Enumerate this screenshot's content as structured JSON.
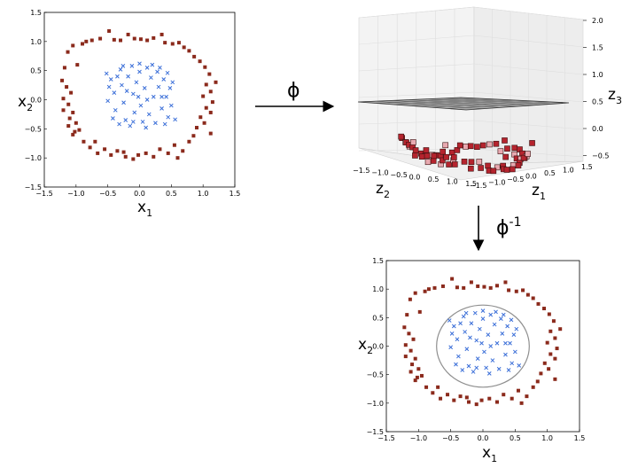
{
  "arrows": {
    "phi_label": "ϕ",
    "phi_inv_label": "ϕ",
    "phi_inv_sup": "-1"
  },
  "panels": {
    "top_left": {
      "xlabel_var": "x",
      "xlabel_sub": "1",
      "ylabel_var": "x",
      "ylabel_sub": "2",
      "xticks": [
        "−1.5",
        "−1.0",
        "−0.5",
        "0.0",
        "0.5",
        "1.0",
        "1.5"
      ],
      "yticks": [
        "1.5",
        "1.0",
        "0.5",
        "0.0",
        "−0.5",
        "−1.0",
        "−1.5"
      ]
    },
    "bottom_right": {
      "xlabel_var": "x",
      "xlabel_sub": "1",
      "ylabel_var": "x",
      "ylabel_sub": "2",
      "xticks": [
        "−1.5",
        "−1.0",
        "−0.5",
        "0.0",
        "0.5",
        "1.0",
        "1.5"
      ],
      "yticks": [
        "1.5",
        "1.0",
        "0.5",
        "0.0",
        "−0.5",
        "−1.0",
        "−1.5"
      ]
    },
    "top_right": {
      "z3_label_var": "z",
      "z3_label_sub": "3",
      "z2_label_var": "z",
      "z2_label_sub": "2",
      "z1_label_var": "z",
      "z1_label_sub": "1",
      "z3_ticks": [
        "2.0",
        "1.5",
        "1.0",
        "0.5",
        "0.0",
        "−0.5"
      ],
      "z2_ticks": [
        "−1.5",
        "−1.0",
        "−0.5",
        "0.0",
        "0.5",
        "1.0",
        "1.5"
      ],
      "z1_ticks": [
        "−1.5",
        "−1.0",
        "−0.5",
        "0.0",
        "0.5",
        "1.0",
        "1.5"
      ]
    }
  },
  "chart_data": {
    "type": "scatter",
    "xlim": [
      -1.5,
      1.5
    ],
    "ylim": [
      -1.5,
      1.5
    ],
    "series": [
      {
        "marker": "square",
        "color": "#8b2a1c",
        "points": [
          [
            -1.18,
            0.55
          ],
          [
            -1.13,
            0.82
          ],
          [
            -1.05,
            0.93
          ],
          [
            -0.98,
            0.6
          ],
          [
            -0.9,
            0.96
          ],
          [
            -0.84,
            1.0
          ],
          [
            -0.75,
            1.02
          ],
          [
            -0.62,
            1.05
          ],
          [
            -0.48,
            1.18
          ],
          [
            -0.4,
            1.03
          ],
          [
            -0.3,
            1.02
          ],
          [
            -0.18,
            1.12
          ],
          [
            -0.08,
            1.05
          ],
          [
            0.02,
            1.04
          ],
          [
            0.12,
            1.02
          ],
          [
            0.22,
            1.06
          ],
          [
            0.35,
            1.12
          ],
          [
            0.4,
            0.98
          ],
          [
            0.52,
            0.96
          ],
          [
            0.62,
            0.98
          ],
          [
            0.7,
            0.9
          ],
          [
            0.78,
            0.84
          ],
          [
            0.86,
            0.74
          ],
          [
            0.95,
            0.66
          ],
          [
            1.03,
            0.56
          ],
          [
            1.1,
            0.44
          ],
          [
            -1.22,
            0.33
          ],
          [
            -1.15,
            0.22
          ],
          [
            -1.08,
            0.12
          ],
          [
            -1.2,
            0.02
          ],
          [
            -1.12,
            -0.08
          ],
          [
            -1.2,
            -0.18
          ],
          [
            -1.05,
            -0.22
          ],
          [
            -1.1,
            -0.32
          ],
          [
            -1.0,
            -0.4
          ],
          [
            -1.12,
            -0.45
          ],
          [
            -1.02,
            -0.55
          ],
          [
            -0.95,
            -0.52
          ],
          [
            -1.05,
            -0.6
          ],
          [
            1.2,
            0.3
          ],
          [
            1.05,
            0.26
          ],
          [
            1.12,
            0.14
          ],
          [
            1.0,
            0.06
          ],
          [
            1.15,
            -0.04
          ],
          [
            1.05,
            -0.14
          ],
          [
            1.12,
            -0.22
          ],
          [
            0.96,
            -0.3
          ],
          [
            1.02,
            -0.4
          ],
          [
            0.9,
            -0.48
          ],
          [
            1.12,
            -0.58
          ],
          [
            -0.88,
            -0.72
          ],
          [
            -0.78,
            -0.82
          ],
          [
            -0.66,
            -0.92
          ],
          [
            -0.55,
            -0.85
          ],
          [
            -0.45,
            -0.95
          ],
          [
            -0.35,
            -0.88
          ],
          [
            -0.22,
            -0.98
          ],
          [
            -0.1,
            -1.02
          ],
          [
            -0.02,
            -0.95
          ],
          [
            0.1,
            -0.92
          ],
          [
            0.22,
            -0.98
          ],
          [
            0.32,
            -0.85
          ],
          [
            0.45,
            -0.92
          ],
          [
            0.55,
            -0.78
          ],
          [
            0.68,
            -0.88
          ],
          [
            0.78,
            -0.72
          ],
          [
            0.85,
            -0.62
          ],
          [
            -0.7,
            -0.72
          ],
          [
            0.6,
            -1.0
          ],
          [
            -0.25,
            -0.9
          ]
        ]
      },
      {
        "marker": "x",
        "color": "#3a6ed8",
        "points": [
          [
            -0.45,
            0.35
          ],
          [
            -0.4,
            0.12
          ],
          [
            -0.38,
            -0.18
          ],
          [
            -0.3,
            0.52
          ],
          [
            -0.28,
            0.25
          ],
          [
            -0.25,
            -0.05
          ],
          [
            -0.22,
            -0.35
          ],
          [
            -0.18,
            0.4
          ],
          [
            -0.12,
            0.58
          ],
          [
            -0.1,
            0.1
          ],
          [
            -0.08,
            -0.22
          ],
          [
            -0.05,
            0.3
          ],
          [
            0.0,
            0.48
          ],
          [
            0.02,
            -0.1
          ],
          [
            0.05,
            -0.38
          ],
          [
            0.08,
            0.2
          ],
          [
            0.12,
            0.55
          ],
          [
            0.15,
            -0.25
          ],
          [
            0.18,
            0.38
          ],
          [
            0.22,
            0.05
          ],
          [
            0.25,
            -0.4
          ],
          [
            0.28,
            0.48
          ],
          [
            0.3,
            0.22
          ],
          [
            0.35,
            -0.15
          ],
          [
            0.38,
            0.35
          ],
          [
            0.42,
            0.05
          ],
          [
            0.45,
            -0.3
          ],
          [
            0.48,
            0.2
          ],
          [
            -0.5,
            -0.02
          ],
          [
            -0.42,
            -0.32
          ],
          [
            -0.35,
            0.4
          ],
          [
            -0.2,
            0.15
          ],
          [
            -0.15,
            -0.45
          ],
          [
            -0.02,
            0.05
          ],
          [
            0.1,
            -0.48
          ],
          [
            0.2,
            0.6
          ],
          [
            0.32,
            0.55
          ],
          [
            0.4,
            -0.42
          ],
          [
            0.5,
            -0.1
          ],
          [
            0.52,
            0.3
          ],
          [
            -0.48,
            0.22
          ],
          [
            -0.32,
            -0.42
          ],
          [
            0.0,
            0.62
          ],
          [
            0.12,
            0.0
          ],
          [
            -0.1,
            -0.38
          ],
          [
            0.35,
            0.05
          ],
          [
            -0.26,
            0.58
          ],
          [
            0.44,
            0.46
          ],
          [
            -0.52,
            0.45
          ],
          [
            0.56,
            -0.34
          ]
        ]
      }
    ]
  }
}
